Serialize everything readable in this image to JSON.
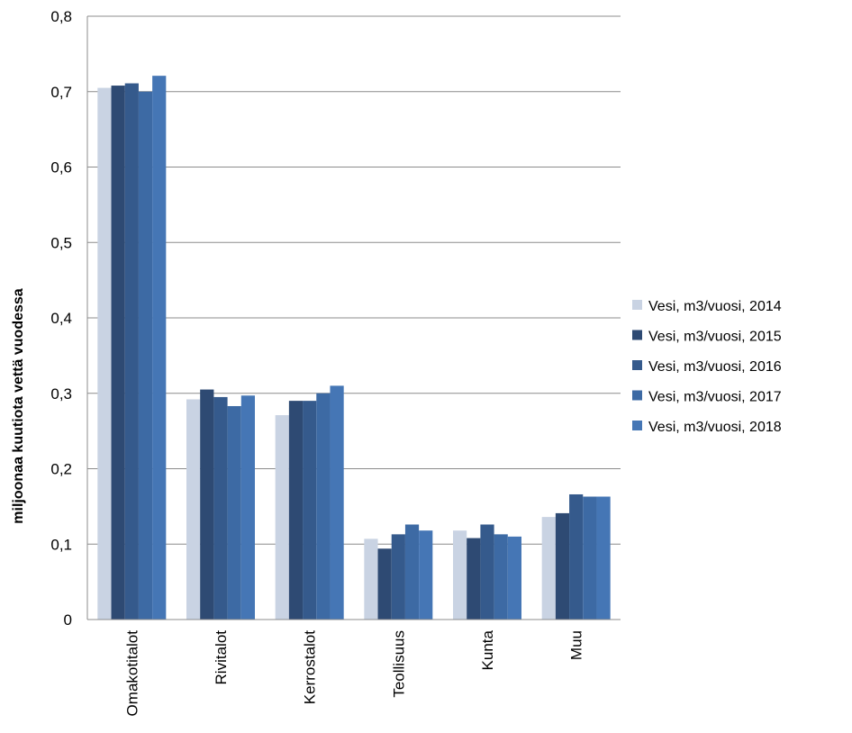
{
  "chart_data": {
    "type": "bar",
    "title": "",
    "xlabel": "",
    "ylabel": "miljoonaa kuutiota vettä vuodessa",
    "ylim": [
      0,
      0.8
    ],
    "yticks": [
      "0",
      "0,1",
      "0,2",
      "0,3",
      "0,4",
      "0,5",
      "0,6",
      "0,7",
      "0,8"
    ],
    "grid": true,
    "legend_position": "right",
    "categories": [
      "Omakotitalot",
      "Rivitalot",
      "Kerrostalot",
      "Teollisuus",
      "Kunta",
      "Muu"
    ],
    "series": [
      {
        "name": "Vesi, m3/vuosi, 2014",
        "color": "#c9d3e3",
        "values": [
          0.705,
          0.292,
          0.271,
          0.107,
          0.118,
          0.136
        ]
      },
      {
        "name": "Vesi, m3/vuosi, 2015",
        "color": "#2e4a73",
        "values": [
          0.708,
          0.305,
          0.29,
          0.094,
          0.108,
          0.141
        ]
      },
      {
        "name": "Vesi, m3/vuosi, 2016",
        "color": "#355a8c",
        "values": [
          0.711,
          0.295,
          0.29,
          0.113,
          0.126,
          0.166
        ]
      },
      {
        "name": "Vesi, m3/vuosi, 2017",
        "color": "#3d6aa4",
        "values": [
          0.7,
          0.283,
          0.3,
          0.126,
          0.113,
          0.163
        ]
      },
      {
        "name": "Vesi, m3/vuosi, 2018",
        "color": "#4576b5",
        "values": [
          0.721,
          0.297,
          0.31,
          0.118,
          0.11,
          0.163
        ]
      }
    ]
  }
}
